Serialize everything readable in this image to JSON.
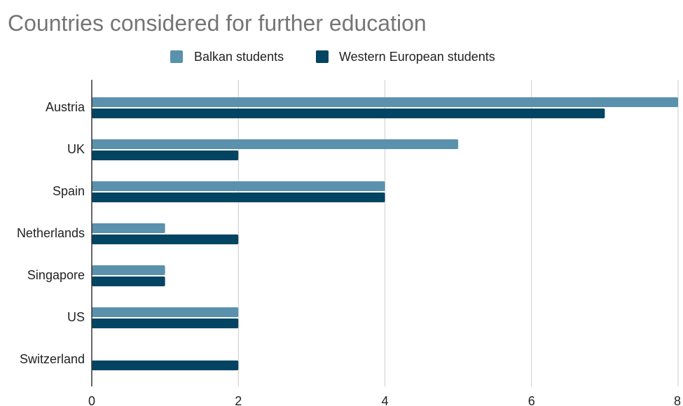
{
  "chart_data": {
    "type": "bar",
    "orientation": "horizontal",
    "title": "Countries considered for further education",
    "categories": [
      "Austria",
      "UK",
      "Spain",
      "Netherlands",
      "Singapore",
      "US",
      "Switzerland"
    ],
    "series": [
      {
        "name": "Balkan students",
        "values": [
          8,
          5,
          4,
          1,
          1,
          2,
          0
        ],
        "color": "#5a91ad"
      },
      {
        "name": "Western European students",
        "values": [
          7,
          2,
          4,
          2,
          1,
          2,
          2
        ],
        "color": "#034462"
      }
    ],
    "xlim": [
      0,
      8
    ],
    "x_ticks": [
      "0",
      "2",
      "4",
      "6",
      "8"
    ],
    "xlabel": "",
    "ylabel": "",
    "legend_position": "top",
    "grid": true,
    "gridline_color": "#cccccc",
    "axis_color": "#333333"
  }
}
